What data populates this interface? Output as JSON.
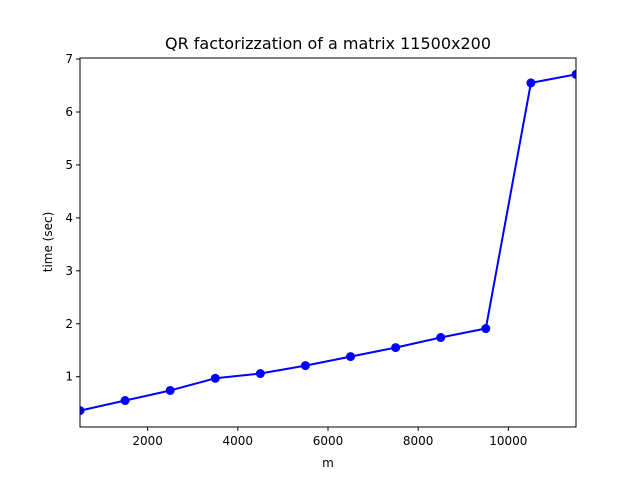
{
  "chart_data": {
    "type": "line",
    "title": "QR factorizzation of a matrix 11500x200",
    "xlabel": "m",
    "ylabel": "time (sec)",
    "xlim": [
      500,
      11500
    ],
    "ylim": [
      0.05,
      7.02
    ],
    "xticks": [
      2000,
      4000,
      6000,
      8000,
      10000
    ],
    "yticks": [
      1,
      2,
      3,
      4,
      5,
      6,
      7
    ],
    "grid": false,
    "series": [
      {
        "color": "#0000ff",
        "marker": "circle",
        "x": [
          500,
          1500,
          2500,
          3500,
          4500,
          5500,
          6500,
          7500,
          8500,
          9500,
          10500,
          11500
        ],
        "y": [
          0.36,
          0.55,
          0.74,
          0.97,
          1.06,
          1.21,
          1.38,
          1.55,
          1.74,
          1.91,
          6.55,
          6.71
        ]
      }
    ]
  }
}
